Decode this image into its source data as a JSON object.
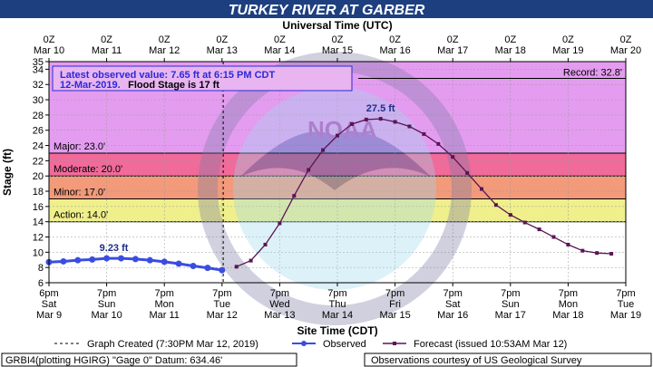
{
  "header": {
    "title": "TURKEY RIVER AT GARBER",
    "top_axis_title": "Universal Time (UTC)"
  },
  "axes": {
    "ylabel": "Stage (ft)",
    "xlabel": "Site Time (CDT)"
  },
  "info_box": {
    "line1": "Latest observed value: 7.65 ft at 6:15 PM CDT",
    "line2_date": "12-Mar-2019.",
    "line2_flood": "Flood Stage is 17 ft"
  },
  "record_label": "Record: 32.8'",
  "flood_categories": [
    {
      "label": "Major: 23.0'",
      "value": 23.0,
      "color": "#f06a9a"
    },
    {
      "label": "Moderate: 20.0'",
      "value": 20.0,
      "color": "#f29a7a"
    },
    {
      "label": "Minor: 17.0'",
      "value": 17.0,
      "color": "#f6cf86"
    },
    {
      "label": "Action: 14.0'",
      "value": 14.0,
      "color": "#efef8c"
    }
  ],
  "legend": {
    "created": "Graph Created (7:30PM Mar 12, 2019)",
    "observed": "Observed",
    "forecast": "Forecast (issued 10:53AM Mar 12)"
  },
  "footer": {
    "left": "GRBI4(plotting HGIRG) \"Gage 0\" Datum: 634.46'",
    "right": "Observations courtesy of US Geological Survey"
  },
  "watermark_text": {
    "noaa": "NOAA",
    "commerce": "U.S. DEPARTMENT OF COMMERCE",
    "noaa_arc": "NATIONAL OCEANIC AND ATMOSPHERIC ADMINISTRATION"
  },
  "colors": {
    "observed": "#3b4de0",
    "forecast": "#5a1553",
    "record_band": "#e49cf0",
    "title_band": "#1e3f7f"
  },
  "chart_data": {
    "type": "line",
    "title": "TURKEY RIVER AT GARBER",
    "xlabel": "Site Time (CDT)",
    "ylabel": "Stage (ft)",
    "x_unit": "hours since 6pm Sat Mar 9 (CDT)",
    "xlim": [
      0,
      240
    ],
    "ylim": [
      6,
      35
    ],
    "y_ticks": [
      6,
      8,
      10,
      12,
      14,
      16,
      18,
      20,
      22,
      24,
      26,
      28,
      30,
      32,
      34,
      35
    ],
    "grid": true,
    "bottom_ticks": [
      [
        "6pm",
        "Sat",
        "Mar 9"
      ],
      [
        "7pm",
        "Sun",
        "Mar 10"
      ],
      [
        "7pm",
        "Mon",
        "Mar 11"
      ],
      [
        "7pm",
        "Tue",
        "Mar 12"
      ],
      [
        "7pm",
        "Wed",
        "Mar 13"
      ],
      [
        "7pm",
        "Thu",
        "Mar 14"
      ],
      [
        "7pm",
        "Fri",
        "Mar 15"
      ],
      [
        "7pm",
        "Sat",
        "Mar 16"
      ],
      [
        "7pm",
        "Sun",
        "Mar 17"
      ],
      [
        "7pm",
        "Mon",
        "Mar 18"
      ],
      [
        "7pm",
        "Tue",
        "Mar 19"
      ]
    ],
    "top_ticks": [
      [
        "0Z",
        "Mar 10"
      ],
      [
        "0Z",
        "Mar 11"
      ],
      [
        "0Z",
        "Mar 12"
      ],
      [
        "0Z",
        "Mar 13"
      ],
      [
        "0Z",
        "Mar 14"
      ],
      [
        "0Z",
        "Mar 15"
      ],
      [
        "0Z",
        "Mar 16"
      ],
      [
        "0Z",
        "Mar 17"
      ],
      [
        "0Z",
        "Mar 18"
      ],
      [
        "0Z",
        "Mar 19"
      ],
      [
        "0Z",
        "Mar 20"
      ]
    ],
    "record": 32.8,
    "flood_stage": 17,
    "graph_created_x": 72.5,
    "series": [
      {
        "name": "Observed",
        "points": [
          [
            0,
            8.7
          ],
          [
            6,
            8.8
          ],
          [
            12,
            8.95
          ],
          [
            18,
            9.05
          ],
          [
            24,
            9.2
          ],
          [
            30,
            9.2
          ],
          [
            36,
            9.1
          ],
          [
            42,
            8.95
          ],
          [
            48,
            8.75
          ],
          [
            54,
            8.5
          ],
          [
            60,
            8.2
          ],
          [
            66,
            7.95
          ],
          [
            72,
            7.65
          ]
        ]
      },
      {
        "name": "Forecast",
        "points": [
          [
            78,
            8.1
          ],
          [
            84,
            8.9
          ],
          [
            90,
            11.0
          ],
          [
            96,
            13.8
          ],
          [
            102,
            17.4
          ],
          [
            108,
            20.8
          ],
          [
            114,
            23.4
          ],
          [
            120,
            25.3
          ],
          [
            126,
            26.8
          ],
          [
            132,
            27.4
          ],
          [
            138,
            27.5
          ],
          [
            144,
            27.1
          ],
          [
            150,
            26.5
          ],
          [
            156,
            25.5
          ],
          [
            162,
            24.2
          ],
          [
            168,
            22.5
          ],
          [
            174,
            20.4
          ],
          [
            180,
            18.3
          ],
          [
            186,
            16.2
          ],
          [
            192,
            14.9
          ],
          [
            198,
            13.9
          ],
          [
            204,
            13.0
          ],
          [
            210,
            12.0
          ],
          [
            216,
            11.0
          ],
          [
            222,
            10.2
          ],
          [
            228,
            9.9
          ],
          [
            234,
            9.8
          ]
        ]
      }
    ],
    "annotations": [
      {
        "text": "9.23 ft",
        "x": 27,
        "y": 9.23
      },
      {
        "text": "27.5 ft",
        "x": 138,
        "y": 27.5
      }
    ]
  }
}
